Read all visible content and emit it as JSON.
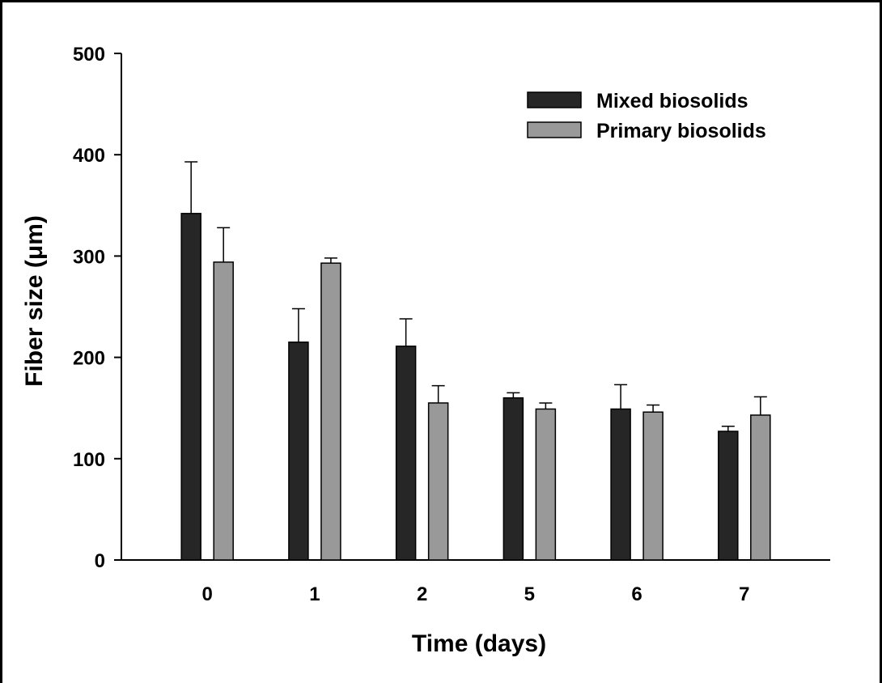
{
  "chart_data": {
    "type": "bar",
    "categories": [
      "0",
      "1",
      "2",
      "5",
      "6",
      "7"
    ],
    "series": [
      {
        "name": "Mixed biosolids",
        "color": "#262626",
        "values": [
          342,
          215,
          211,
          160,
          149,
          127
        ],
        "errors": [
          51,
          33,
          27,
          5,
          24,
          5
        ]
      },
      {
        "name": "Primary biosolids",
        "color": "#999999",
        "values": [
          294,
          293,
          155,
          149,
          146,
          143
        ],
        "errors": [
          34,
          5,
          17,
          6,
          7,
          18
        ]
      }
    ],
    "xlabel": "Time (days)",
    "ylabel": "Fiber size (μm)",
    "ylim": [
      0,
      500
    ],
    "yticks": [
      0,
      100,
      200,
      300,
      400,
      500
    ],
    "grid": false,
    "legend_position": "top-right"
  }
}
